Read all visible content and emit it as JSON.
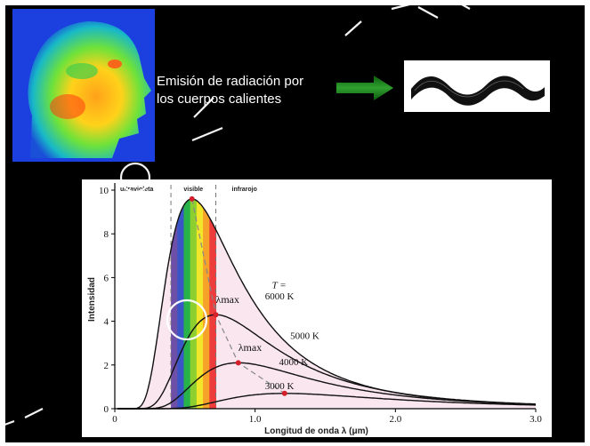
{
  "top": {
    "caption_line1": "Emisión de radiación por",
    "caption_line2": "los cuerpos calientes"
  },
  "chart_data": {
    "type": "line",
    "xlabel": "Longitud de onda λ (μm)",
    "ylabel": "Intensidad",
    "xlim": [
      0,
      3.0
    ],
    "ylim": [
      0,
      10
    ],
    "x_ticks": [
      "0",
      "1.0",
      "2.0",
      "3.0"
    ],
    "y_ticks": [
      "0",
      "2",
      "4",
      "6",
      "8",
      "10"
    ],
    "region_labels": [
      "ultravioleta",
      "visible",
      "infrarojo"
    ],
    "lambda_max_label": "λmax",
    "T_label": "T =",
    "series": [
      {
        "name": "6000 K",
        "peak_x": 0.55,
        "peak_y": 9.6
      },
      {
        "name": "5000 K",
        "peak_x": 0.72,
        "peak_y": 4.3
      },
      {
        "name": "4000 K",
        "peak_x": 0.88,
        "peak_y": 2.1
      },
      {
        "name": "3000 K",
        "peak_x": 1.21,
        "peak_y": 0.7
      }
    ],
    "spectrum_colors": [
      "#6d4fa8",
      "#3a56c6",
      "#28b34a",
      "#8ccf2e",
      "#f2e62a",
      "#f6a129",
      "#ee3b3b"
    ]
  }
}
